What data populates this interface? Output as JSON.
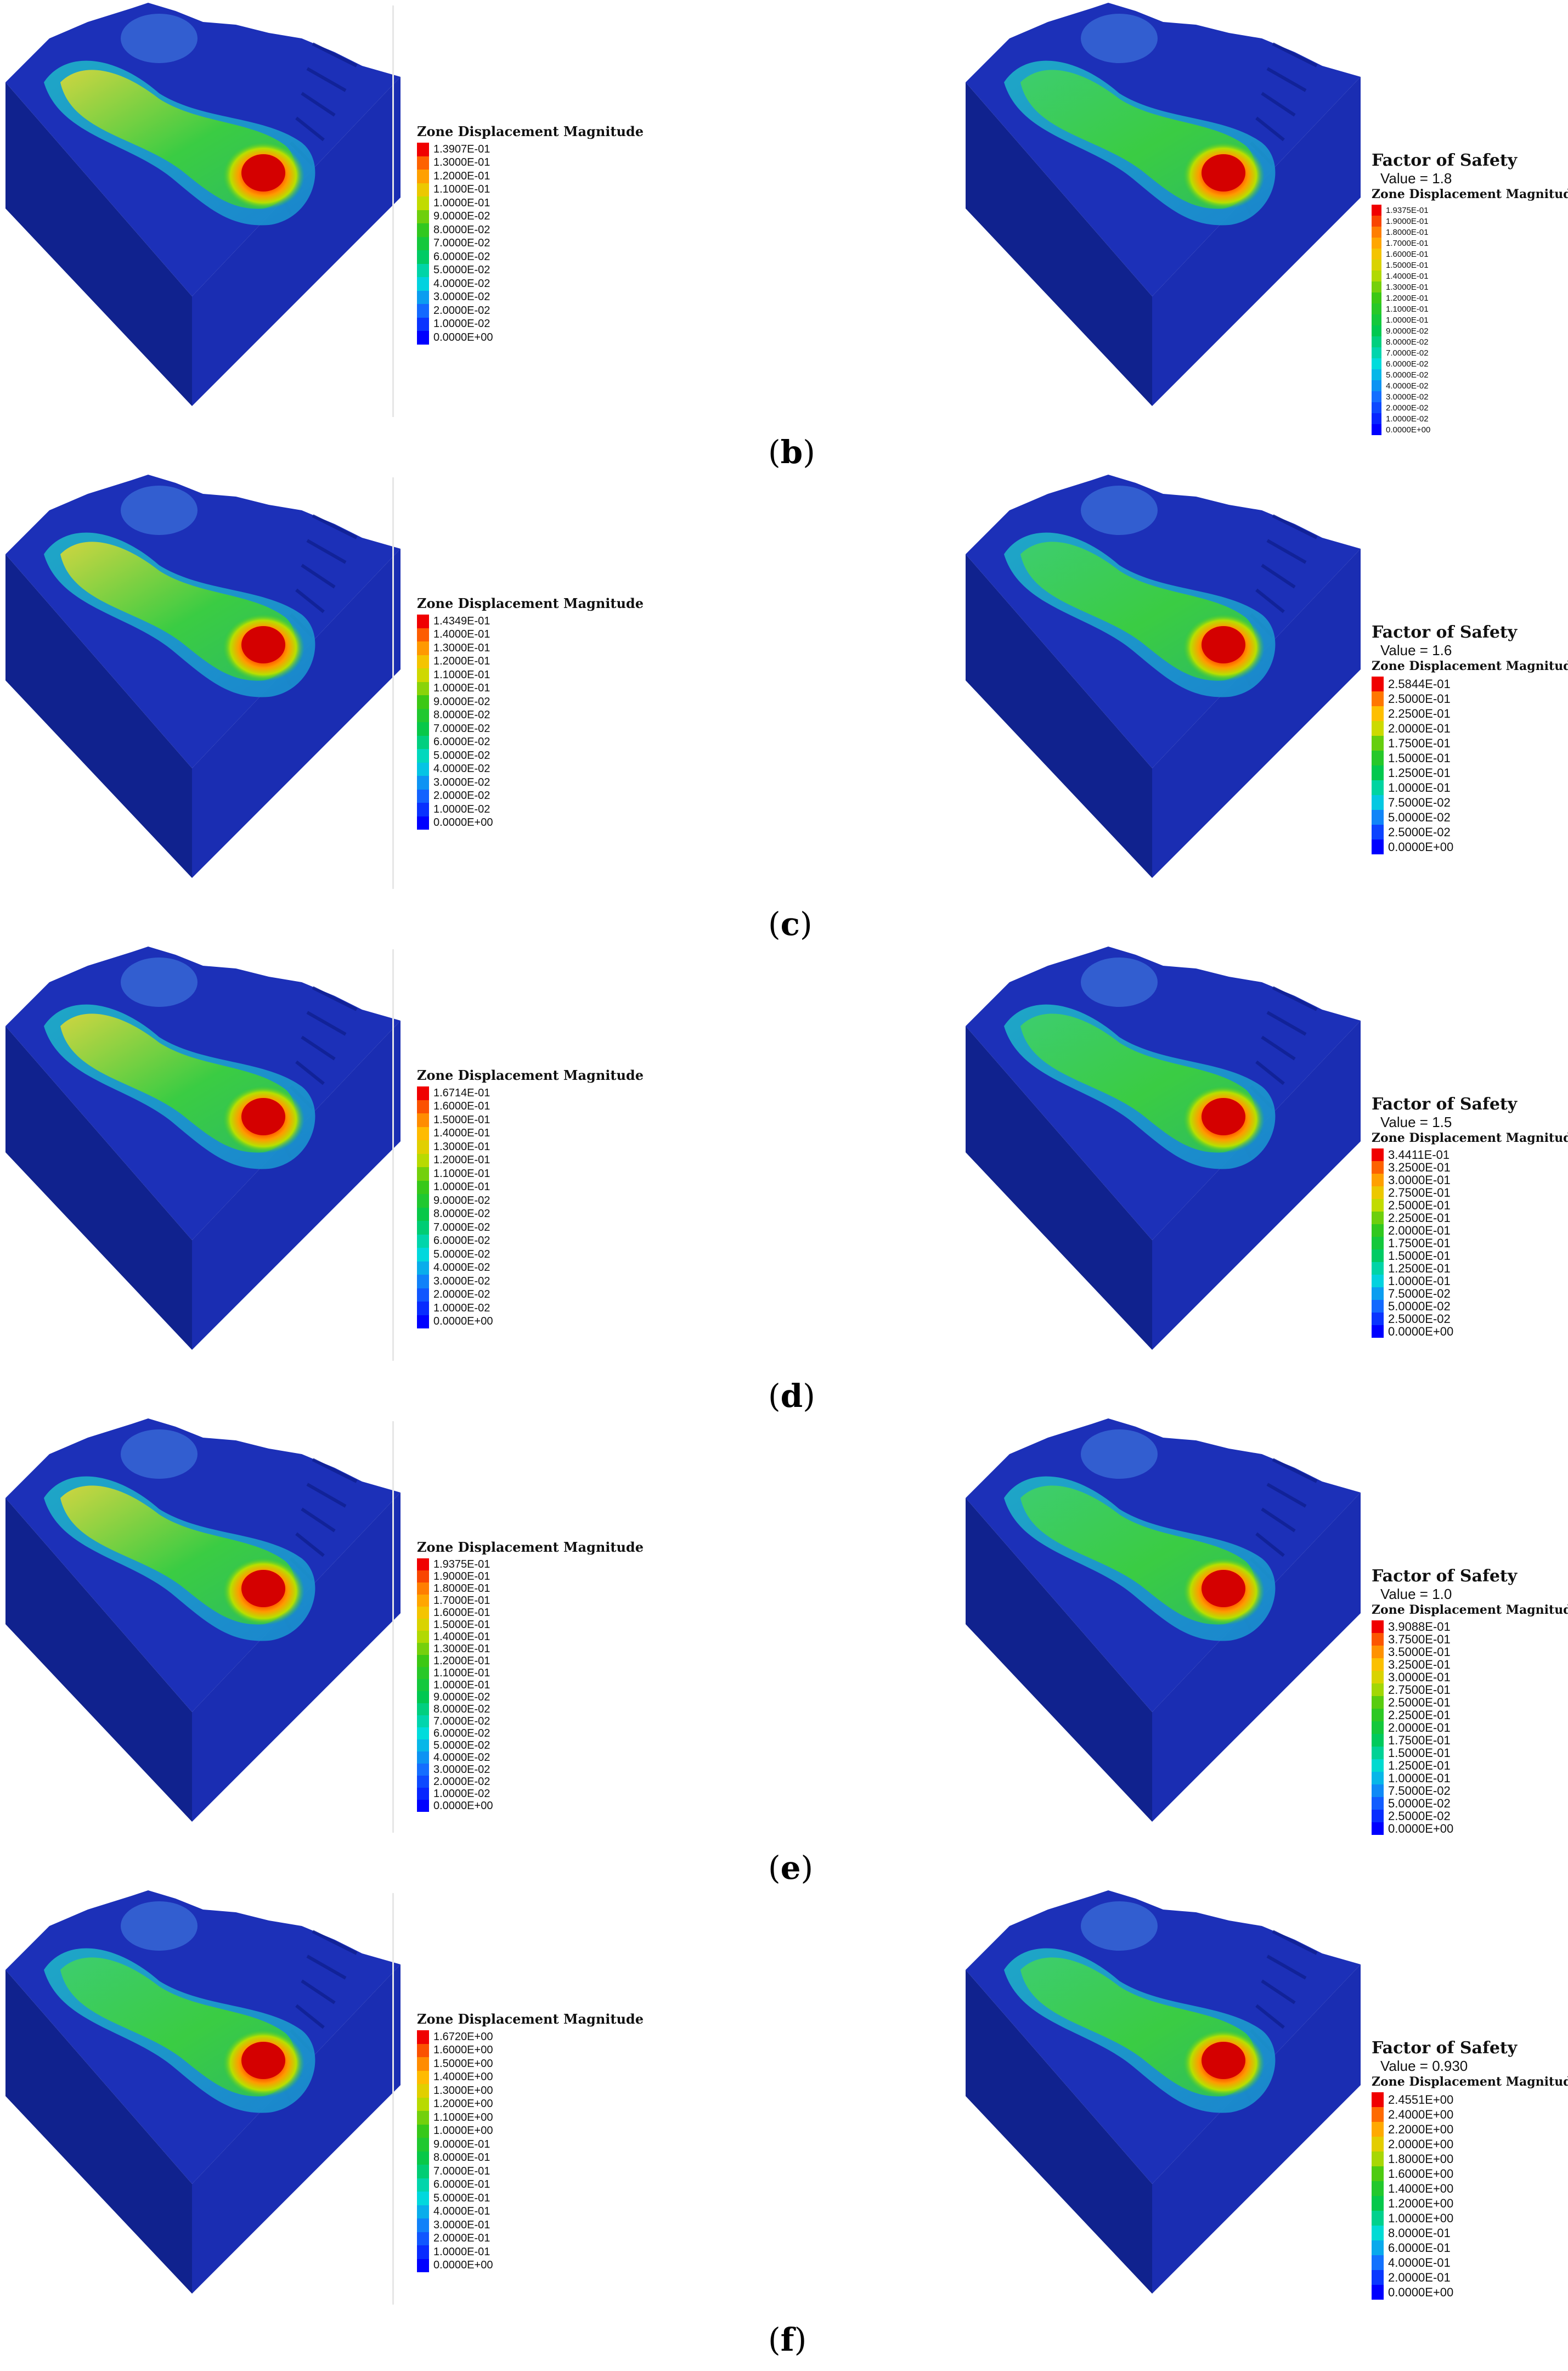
{
  "legend_title": "Zone Displacement Magnitude",
  "fos_title": "Factor of Safety",
  "colors": {
    "background": "#ffffff",
    "model_blue": "#1a2fb0",
    "model_blue_dark": "#0c1a7a",
    "hot": "#e01010",
    "warm": "#f2a000",
    "mid": "#35c12a",
    "cool": "#23c7c7"
  },
  "rows": [
    {
      "caption": "b",
      "left": {
        "ticks": [
          "1.3907E-01",
          "1.3000E-01",
          "1.2000E-01",
          "1.1000E-01",
          "1.0000E-01",
          "9.0000E-02",
          "8.0000E-02",
          "7.0000E-02",
          "6.0000E-02",
          "5.0000E-02",
          "4.0000E-02",
          "3.0000E-02",
          "2.0000E-02",
          "1.0000E-02",
          "0.0000E+00"
        ]
      },
      "right": {
        "fos_value": "Value = 1.8",
        "ticks": [
          "1.9375E-01",
          "1.9000E-01",
          "1.8000E-01",
          "1.7000E-01",
          "1.6000E-01",
          "1.5000E-01",
          "1.4000E-01",
          "1.3000E-01",
          "1.2000E-01",
          "1.1000E-01",
          "1.0000E-01",
          "9.0000E-02",
          "8.0000E-02",
          "7.0000E-02",
          "6.0000E-02",
          "5.0000E-02",
          "4.0000E-02",
          "3.0000E-02",
          "2.0000E-02",
          "1.0000E-02",
          "0.0000E+00"
        ]
      }
    },
    {
      "caption": "c",
      "left": {
        "ticks": [
          "1.4349E-01",
          "1.4000E-01",
          "1.3000E-01",
          "1.2000E-01",
          "1.1000E-01",
          "1.0000E-01",
          "9.0000E-02",
          "8.0000E-02",
          "7.0000E-02",
          "6.0000E-02",
          "5.0000E-02",
          "4.0000E-02",
          "3.0000E-02",
          "2.0000E-02",
          "1.0000E-02",
          "0.0000E+00"
        ]
      },
      "right": {
        "fos_value": "Value = 1.6",
        "ticks": [
          "2.5844E-01",
          "2.5000E-01",
          "2.2500E-01",
          "2.0000E-01",
          "1.7500E-01",
          "1.5000E-01",
          "1.2500E-01",
          "1.0000E-01",
          "7.5000E-02",
          "5.0000E-02",
          "2.5000E-02",
          "0.0000E+00"
        ]
      }
    },
    {
      "caption": "d",
      "left": {
        "ticks": [
          "1.6714E-01",
          "1.6000E-01",
          "1.5000E-01",
          "1.4000E-01",
          "1.3000E-01",
          "1.2000E-01",
          "1.1000E-01",
          "1.0000E-01",
          "9.0000E-02",
          "8.0000E-02",
          "7.0000E-02",
          "6.0000E-02",
          "5.0000E-02",
          "4.0000E-02",
          "3.0000E-02",
          "2.0000E-02",
          "1.0000E-02",
          "0.0000E+00"
        ]
      },
      "right": {
        "fos_value": "Value = 1.5",
        "ticks": [
          "3.4411E-01",
          "3.2500E-01",
          "3.0000E-01",
          "2.7500E-01",
          "2.5000E-01",
          "2.2500E-01",
          "2.0000E-01",
          "1.7500E-01",
          "1.5000E-01",
          "1.2500E-01",
          "1.0000E-01",
          "7.5000E-02",
          "5.0000E-02",
          "2.5000E-02",
          "0.0000E+00"
        ]
      }
    },
    {
      "caption": "e",
      "left": {
        "ticks": [
          "1.9375E-01",
          "1.9000E-01",
          "1.8000E-01",
          "1.7000E-01",
          "1.6000E-01",
          "1.5000E-01",
          "1.4000E-01",
          "1.3000E-01",
          "1.2000E-01",
          "1.1000E-01",
          "1.0000E-01",
          "9.0000E-02",
          "8.0000E-02",
          "7.0000E-02",
          "6.0000E-02",
          "5.0000E-02",
          "4.0000E-02",
          "3.0000E-02",
          "2.0000E-02",
          "1.0000E-02",
          "0.0000E+00"
        ]
      },
      "right": {
        "fos_value": "Value = 1.0",
        "ticks": [
          "3.9088E-01",
          "3.7500E-01",
          "3.5000E-01",
          "3.2500E-01",
          "3.0000E-01",
          "2.7500E-01",
          "2.5000E-01",
          "2.2500E-01",
          "2.0000E-01",
          "1.7500E-01",
          "1.5000E-01",
          "1.2500E-01",
          "1.0000E-01",
          "7.5000E-02",
          "5.0000E-02",
          "2.5000E-02",
          "0.0000E+00"
        ]
      }
    },
    {
      "caption": "f",
      "left": {
        "ticks": [
          "1.6720E+00",
          "1.6000E+00",
          "1.5000E+00",
          "1.4000E+00",
          "1.3000E+00",
          "1.2000E+00",
          "1.1000E+00",
          "1.0000E+00",
          "9.0000E-01",
          "8.0000E-01",
          "7.0000E-01",
          "6.0000E-01",
          "5.0000E-01",
          "4.0000E-01",
          "3.0000E-01",
          "2.0000E-01",
          "1.0000E-01",
          "0.0000E+00"
        ]
      },
      "right": {
        "fos_value": "Value = 0.930",
        "ticks": [
          "2.4551E+00",
          "2.4000E+00",
          "2.2000E+00",
          "2.0000E+00",
          "1.8000E+00",
          "1.6000E+00",
          "1.4000E+00",
          "1.2000E+00",
          "1.0000E+00",
          "8.0000E-01",
          "6.0000E-01",
          "4.0000E-01",
          "2.0000E-01",
          "0.0000E+00"
        ]
      }
    }
  ]
}
